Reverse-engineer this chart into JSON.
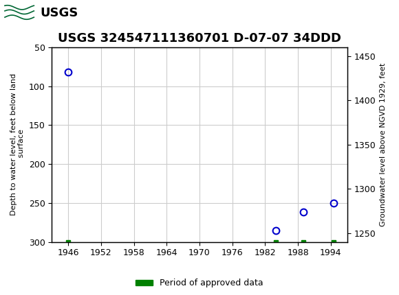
{
  "title": "USGS 324547111360701 D-07-07 34DDD",
  "title_fontsize": 13,
  "ylabel_left": "Depth to water level, feet below land\n surface",
  "ylabel_right": "Groundwater level above NGVD 1929, feet",
  "ylim_left": [
    300,
    50
  ],
  "ylim_right": [
    1240,
    1460
  ],
  "xlim": [
    1943,
    1997
  ],
  "xticks": [
    1946,
    1952,
    1958,
    1964,
    1970,
    1976,
    1982,
    1988,
    1994
  ],
  "yticks_left": [
    50,
    100,
    150,
    200,
    250,
    300
  ],
  "data_x": [
    1946.0,
    1984.0,
    1989.0,
    1994.5
  ],
  "data_y": [
    82,
    285,
    262,
    250
  ],
  "green_x": [
    1946.0,
    1984.0,
    1989.0,
    1994.5
  ],
  "point_color": "#0000cc",
  "bar_color": "#008000",
  "bg_color": "#ffffff",
  "plot_bg_color": "#ffffff",
  "grid_color": "#cccccc",
  "header_color": "#006633",
  "legend_label": "Period of approved data",
  "yticks_right": [
    1250,
    1300,
    1350,
    1400,
    1450
  ]
}
